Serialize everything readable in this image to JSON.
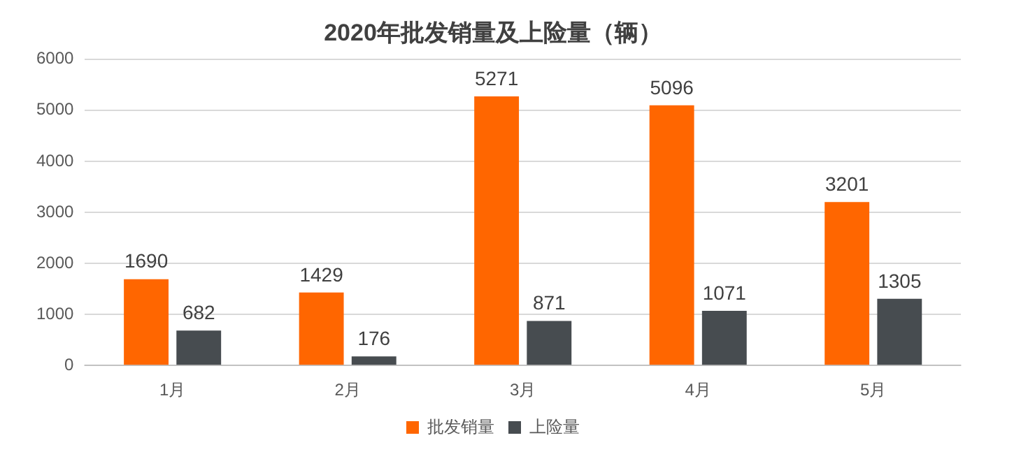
{
  "chart_data": {
    "type": "bar",
    "title": "2020年批发销量及上险量（辆）",
    "categories": [
      "1月",
      "2月",
      "3月",
      "4月",
      "5月"
    ],
    "series": [
      {
        "name": "批发销量",
        "color": "#ff6600",
        "values": [
          1690,
          1429,
          5271,
          5096,
          3201
        ]
      },
      {
        "name": "上险量",
        "color": "#474c50",
        "values": [
          682,
          176,
          871,
          1071,
          1305
        ]
      }
    ],
    "ylim": [
      0,
      6000
    ],
    "yticks": [
      0,
      1000,
      2000,
      3000,
      4000,
      5000,
      6000
    ],
    "grid": "y",
    "legend": "bottom",
    "data_labels": true
  }
}
